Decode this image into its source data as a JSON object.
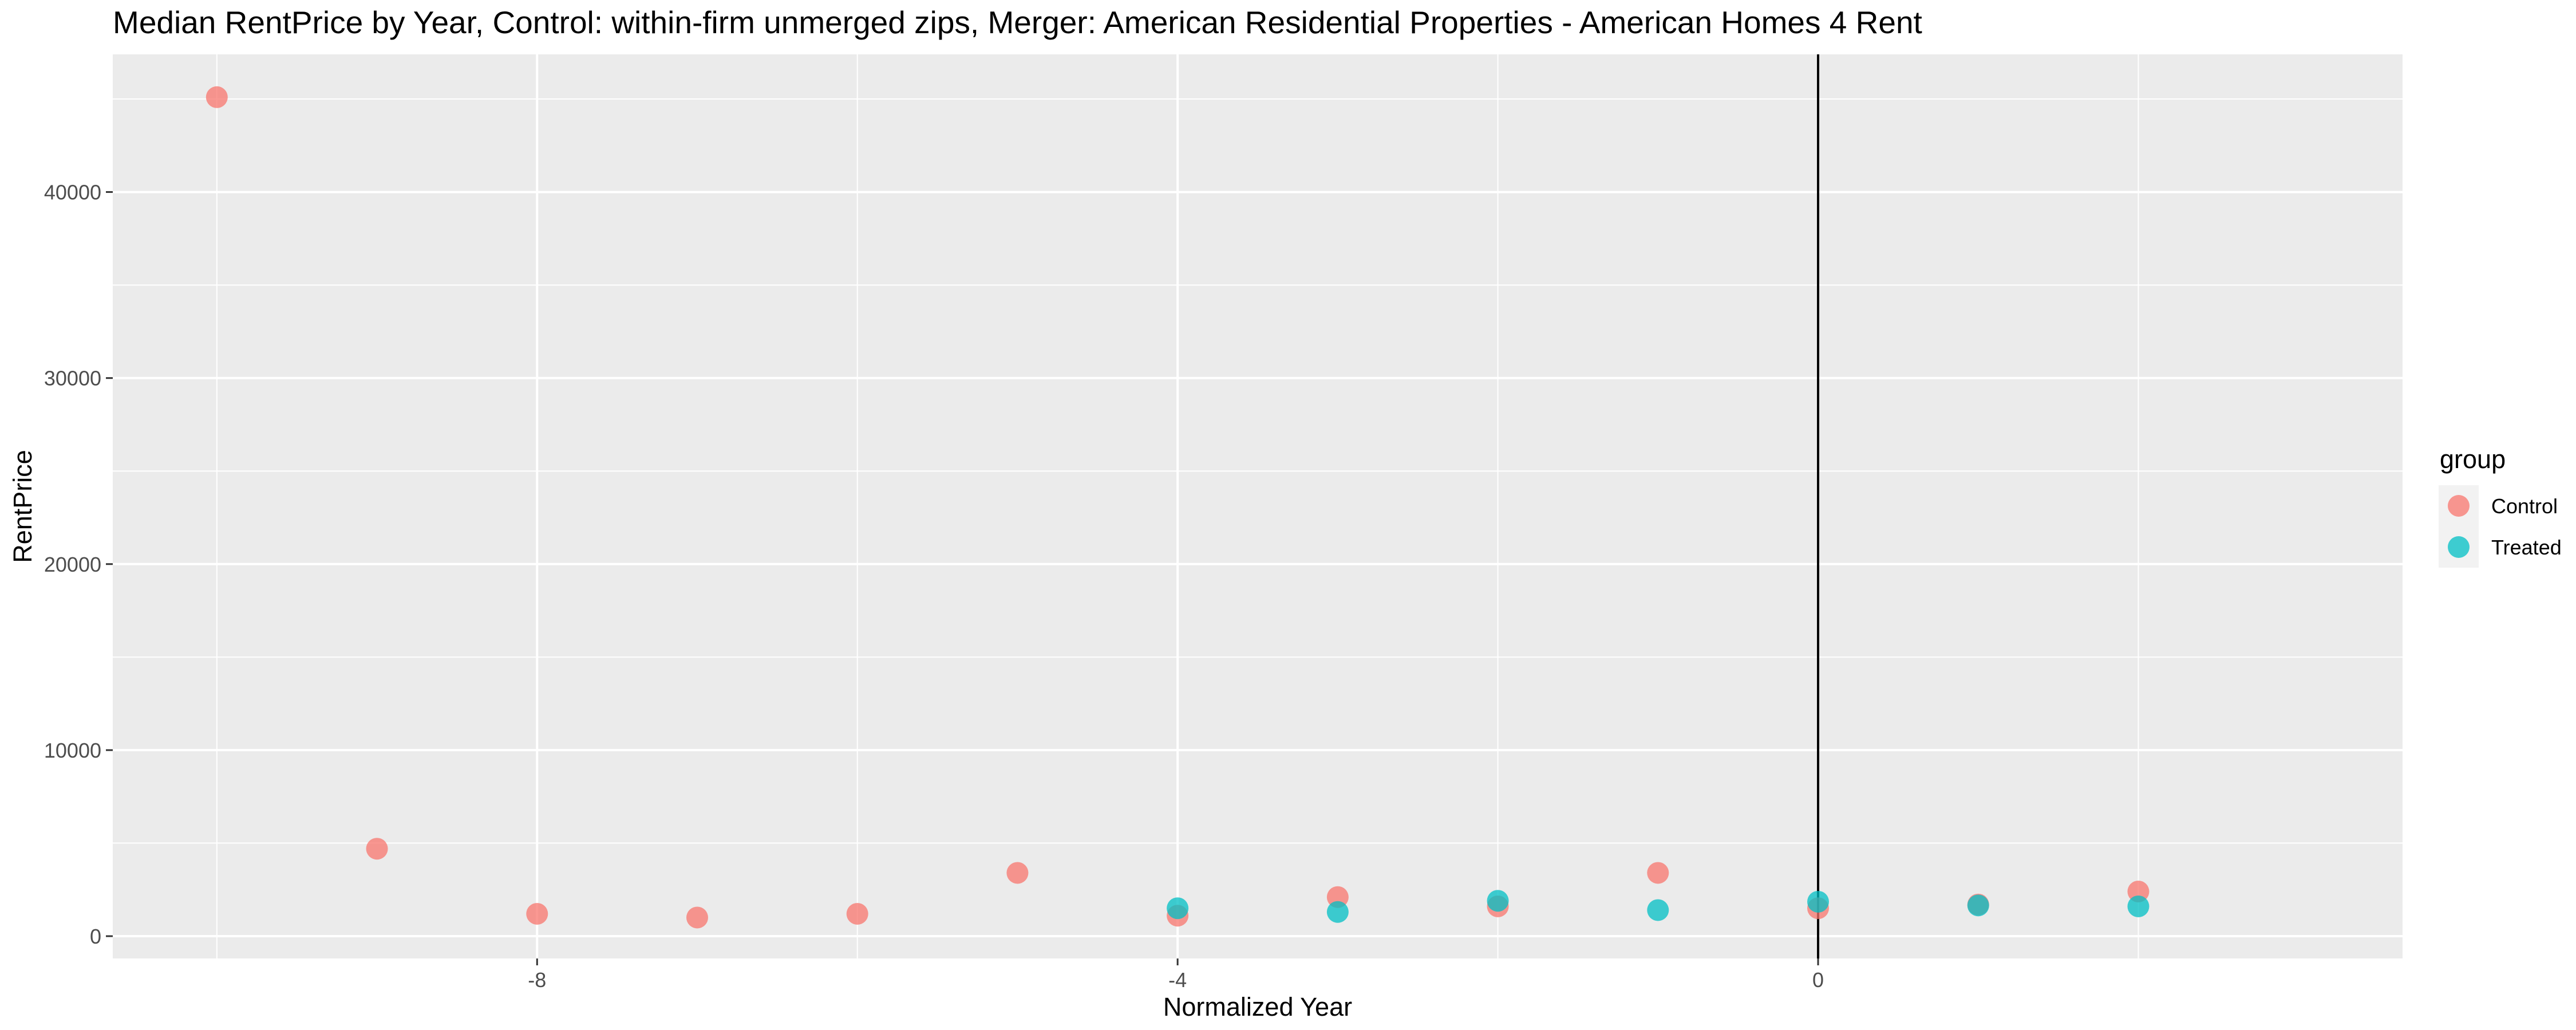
{
  "chart_data": {
    "type": "scatter",
    "title": "Median RentPrice by Year, Control: within-firm unmerged zips, Merger: American Residential Properties - American Homes 4 Rent",
    "xlabel": "Normalized Year",
    "ylabel": "RentPrice",
    "xlim": [
      -10.65,
      3.65
    ],
    "ylim": [
      -1200,
      47400
    ],
    "x_ticks": [
      -8,
      -4,
      0
    ],
    "y_ticks": [
      0,
      10000,
      20000,
      30000,
      40000
    ],
    "x_tick_labels": [
      "-8",
      "-4",
      "0"
    ],
    "y_tick_labels": [
      "0",
      "10000",
      "20000",
      "30000",
      "40000"
    ],
    "grid": true,
    "vline_x": 0,
    "legend": {
      "title": "group",
      "position": "right"
    },
    "series": [
      {
        "name": "Control",
        "color": "#f8766d",
        "points": [
          {
            "x": -10,
            "y": 45100
          },
          {
            "x": -9,
            "y": 4700
          },
          {
            "x": -8,
            "y": 1200
          },
          {
            "x": -7,
            "y": 1000
          },
          {
            "x": -6,
            "y": 1200
          },
          {
            "x": -5,
            "y": 3400
          },
          {
            "x": -4,
            "y": 1100
          },
          {
            "x": -3,
            "y": 2100
          },
          {
            "x": -2,
            "y": 1600
          },
          {
            "x": -1,
            "y": 3400
          },
          {
            "x": 0,
            "y": 1500
          },
          {
            "x": 1,
            "y": 1700
          },
          {
            "x": 2,
            "y": 2400
          }
        ]
      },
      {
        "name": "Treated",
        "color": "#00bfc4",
        "points": [
          {
            "x": -4,
            "y": 1500
          },
          {
            "x": -3,
            "y": 1300
          },
          {
            "x": -2,
            "y": 1900
          },
          {
            "x": -1,
            "y": 1400
          },
          {
            "x": 0,
            "y": 1850
          },
          {
            "x": 1,
            "y": 1650
          },
          {
            "x": 2,
            "y": 1600
          }
        ]
      }
    ]
  }
}
